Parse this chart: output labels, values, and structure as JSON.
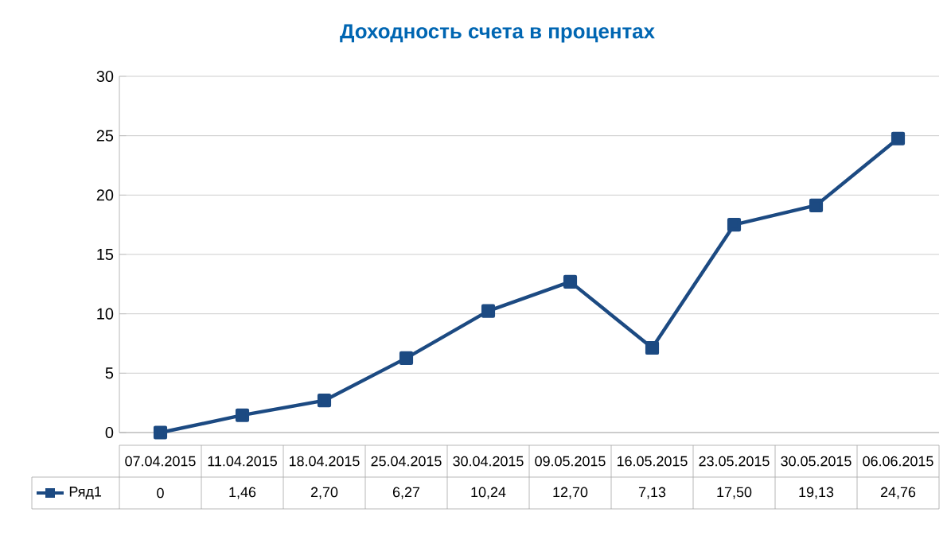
{
  "chart_data": {
    "type": "line",
    "title": "Доходность счета в процентах",
    "categories": [
      "07.04.2015",
      "11.04.2015",
      "18.04.2015",
      "25.04.2015",
      "30.04.2015",
      "09.05.2015",
      "16.05.2015",
      "23.05.2015",
      "30.05.2015",
      "06.06.2015"
    ],
    "series": [
      {
        "name": "Ряд1",
        "color": "#1c4a82",
        "values": [
          0,
          1.46,
          2.7,
          6.27,
          10.24,
          12.7,
          7.13,
          17.5,
          19.13,
          24.76
        ],
        "value_labels": [
          "0",
          "1,46",
          "2,70",
          "6,27",
          "10,24",
          "12,70",
          "7,13",
          "17,50",
          "19,13",
          "24,76"
        ]
      }
    ],
    "ylim": [
      0,
      30
    ],
    "yticks": [
      0,
      5,
      10,
      15,
      20,
      25,
      30
    ],
    "grid": "y",
    "legend": "bottom left",
    "marker": "square",
    "line_style": "solid"
  }
}
